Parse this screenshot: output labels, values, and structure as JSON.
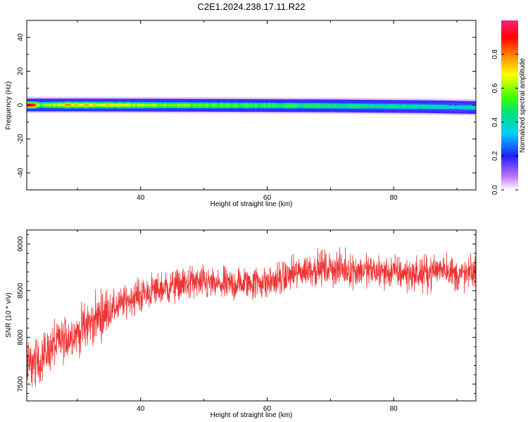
{
  "figure_title": "C2E1.2024.238.17.11.R22",
  "colors": {
    "snr_line": "#ee3333",
    "frame": "#000000",
    "background": "#ffffff"
  },
  "chart_data": [
    {
      "type": "heatmap",
      "xlabel": "Height of straight line (km)",
      "ylabel": "Frequency (Hz)",
      "xlim": [
        22,
        93
      ],
      "ylim": [
        -50,
        50
      ],
      "x_ticks": [
        40,
        60,
        80
      ],
      "y_ticks": [
        40,
        20,
        0,
        -20,
        -40
      ],
      "y_tick_labels": [
        "40",
        "20",
        "0",
        "-20",
        "-40"
      ],
      "colorbar": {
        "label": "Normalized spectral amplitude",
        "range": [
          0,
          1
        ],
        "ticks": [
          0.0,
          0.2,
          0.4,
          0.6,
          0.8
        ],
        "tick_labels": [
          "0.0",
          "0.2",
          "0.4",
          "0.6",
          "0.8"
        ],
        "colormap": "rainbow (violet-blue-cyan-green-yellow-red-pink)"
      },
      "band": {
        "description": "narrow spectral band centered near 0 Hz across all heights",
        "center_hz": [
          {
            "x": 22.5,
            "f": 0.0
          },
          {
            "x": 30,
            "f": 0.0
          },
          {
            "x": 50,
            "f": -0.2
          },
          {
            "x": 70,
            "f": -0.5
          },
          {
            "x": 85,
            "f": -1.0
          },
          {
            "x": 93,
            "f": -1.5
          }
        ],
        "half_width_hz": 3,
        "peak_amplitude": [
          {
            "x": 22.5,
            "a": 1.0
          },
          {
            "x": 24,
            "a": 0.55
          },
          {
            "x": 28,
            "a": 0.75
          },
          {
            "x": 35,
            "a": 0.7
          },
          {
            "x": 45,
            "a": 0.62
          },
          {
            "x": 55,
            "a": 0.55
          },
          {
            "x": 65,
            "a": 0.52
          },
          {
            "x": 75,
            "a": 0.48
          },
          {
            "x": 85,
            "a": 0.45
          },
          {
            "x": 90,
            "a": 0.4
          },
          {
            "x": 93,
            "a": 0.45
          }
        ]
      }
    },
    {
      "type": "line",
      "xlabel": "Height of straight line (km)",
      "ylabel": "SNR (10 * v/v)",
      "xlim": [
        22,
        93
      ],
      "ylim": [
        7320,
        9150
      ],
      "x_ticks": [
        40,
        60,
        80
      ],
      "y_ticks": [
        7500,
        8000,
        8500,
        9000
      ],
      "series": [
        {
          "color": "#ee3333",
          "trend": [
            {
              "x": 22,
              "y": 7700
            },
            {
              "x": 24,
              "y": 7750
            },
            {
              "x": 26,
              "y": 7900
            },
            {
              "x": 28,
              "y": 7980
            },
            {
              "x": 30,
              "y": 8050
            },
            {
              "x": 32,
              "y": 8150
            },
            {
              "x": 34,
              "y": 8250
            },
            {
              "x": 36,
              "y": 8320
            },
            {
              "x": 38,
              "y": 8400
            },
            {
              "x": 40,
              "y": 8450
            },
            {
              "x": 42,
              "y": 8500
            },
            {
              "x": 44,
              "y": 8530
            },
            {
              "x": 46,
              "y": 8560
            },
            {
              "x": 48,
              "y": 8580
            },
            {
              "x": 50,
              "y": 8580
            },
            {
              "x": 52,
              "y": 8560
            },
            {
              "x": 54,
              "y": 8560
            },
            {
              "x": 56,
              "y": 8580
            },
            {
              "x": 58,
              "y": 8590
            },
            {
              "x": 60,
              "y": 8590
            },
            {
              "x": 62,
              "y": 8620
            },
            {
              "x": 64,
              "y": 8670
            },
            {
              "x": 66,
              "y": 8720
            },
            {
              "x": 68,
              "y": 8740
            },
            {
              "x": 70,
              "y": 8740
            },
            {
              "x": 72,
              "y": 8730
            },
            {
              "x": 74,
              "y": 8720
            },
            {
              "x": 76,
              "y": 8710
            },
            {
              "x": 78,
              "y": 8700
            },
            {
              "x": 80,
              "y": 8700
            },
            {
              "x": 82,
              "y": 8680
            },
            {
              "x": 84,
              "y": 8670
            },
            {
              "x": 86,
              "y": 8700
            },
            {
              "x": 88,
              "y": 8760
            },
            {
              "x": 89,
              "y": 8700
            },
            {
              "x": 90,
              "y": 8660
            },
            {
              "x": 92,
              "y": 8680
            },
            {
              "x": 93,
              "y": 8700
            }
          ],
          "noise_amplitude": 110
        }
      ]
    }
  ]
}
